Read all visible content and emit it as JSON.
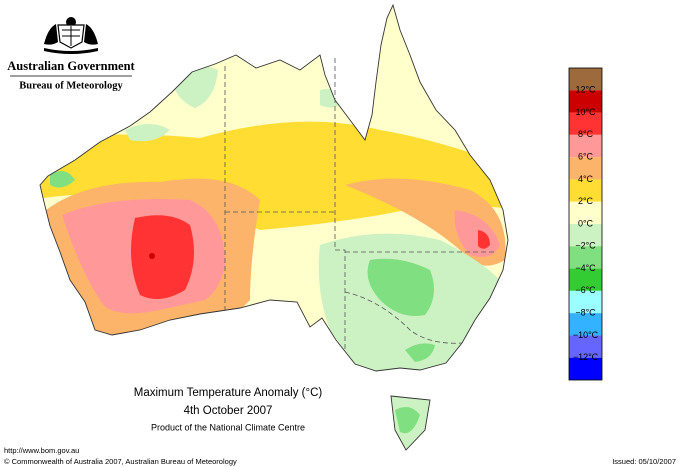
{
  "header": {
    "organization": "Australian Government",
    "agency": "Bureau of Meteorology"
  },
  "map": {
    "title": "Maximum Temperature Anomaly (°C)",
    "date": "4th October 2007",
    "credit": "Product of the National Climate Centre"
  },
  "legend": {
    "colors": [
      "#9c6a3c",
      "#cc0000",
      "#ff3333",
      "#ff9999",
      "#fbb46a",
      "#ffdd33",
      "#ffffcc",
      "#ccf2c4",
      "#80df80",
      "#33cc33",
      "#99ffff",
      "#33b2ff",
      "#6666ff",
      "#0000ff"
    ],
    "labels": [
      "12°C",
      "10°C",
      "8°C",
      "6°C",
      "4°C",
      "2°C",
      "0°C",
      "−2°C",
      "−4°C",
      "−6°C",
      "−8°C",
      "−10°C",
      "−12°C"
    ]
  },
  "footer": {
    "url": "http://www.bom.gov.au",
    "copyright": "© Commonwealth of Australia 2007, Australian Bureau of Meteorology",
    "issued": "Issued: 05/10/2007"
  }
}
